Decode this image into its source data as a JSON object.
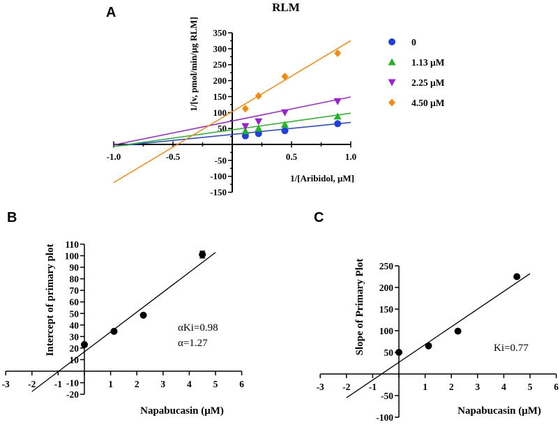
{
  "chart_data": [
    {
      "panel": "A",
      "type": "line",
      "title": "RLM",
      "xlabel": "1/[Aribidol, μM]",
      "ylabel": "1/[v, pmol/min/μg RLM]",
      "xlim": [
        -1.0,
        1.0
      ],
      "ylim": [
        -150,
        350
      ],
      "xticks": [
        -1.0,
        -0.5,
        0.5,
        1.0
      ],
      "xtick_labels": [
        "-1.0",
        "-0.5",
        "0.5",
        "1.0"
      ],
      "yticks": [
        -150,
        -100,
        -50,
        50,
        100,
        150,
        200,
        250,
        300,
        350
      ],
      "line_x_range": [
        -1.0,
        1.0
      ],
      "series": [
        {
          "name": "0",
          "color": "#1f3fe0",
          "marker": "circle",
          "x": [
            0.111,
            0.222,
            0.444,
            0.889
          ],
          "y": [
            27,
            34,
            43,
            65
          ],
          "fit": {
            "slope": 37.5,
            "intercept": 31.4
          }
        },
        {
          "name": "1.13 μM",
          "color": "#22b522",
          "marker": "triangle-up",
          "x": [
            0.111,
            0.222,
            0.444,
            0.889
          ],
          "y": [
            42,
            50,
            62,
            88
          ],
          "fit": {
            "slope": 52.1,
            "intercept": 45.7
          }
        },
        {
          "name": "2.25 μM",
          "color": "#9b1fd6",
          "marker": "triangle-down",
          "x": [
            0.111,
            0.222,
            0.444,
            0.889
          ],
          "y": [
            57,
            72,
            100,
            135
          ],
          "fit": {
            "slope": 75.3,
            "intercept": 73.6
          }
        },
        {
          "name": "4.50 μM",
          "color": "#f58a12",
          "marker": "diamond",
          "x": [
            0.111,
            0.222,
            0.444,
            0.889
          ],
          "y": [
            112,
            152,
            213,
            286
          ],
          "fit": {
            "slope": 222.5,
            "intercept": 102.8
          }
        }
      ]
    },
    {
      "panel": "B",
      "type": "scatter",
      "xlabel": "Napabucasin (μM)",
      "ylabel": "Intercept of primary plot",
      "xlim": [
        -3,
        6
      ],
      "ylim": [
        -20,
        110
      ],
      "xticks": [
        -3,
        -2,
        -1,
        1,
        2,
        3,
        4,
        5,
        6
      ],
      "yticks": [
        -20,
        -10,
        10,
        20,
        30,
        40,
        50,
        60,
        70,
        80,
        90,
        100,
        110
      ],
      "points": {
        "x": [
          0,
          1.13,
          2.25,
          4.5
        ],
        "y": [
          23,
          34.5,
          48.5,
          101
        ]
      },
      "error_bars": [
        0,
        0,
        0,
        3
      ],
      "fit": {
        "slope": 17.2,
        "intercept": 16.8,
        "x_range": [
          -2.0,
          5.0
        ]
      },
      "annotations": [
        "αKi=0.98",
        "α=1.27"
      ]
    },
    {
      "panel": "C",
      "type": "scatter",
      "xlabel": "Napabucasin (μM)",
      "ylabel": "Slope of Primary Plot",
      "xlim": [
        -3,
        6
      ],
      "ylim": [
        -100,
        250
      ],
      "xticks": [
        -3,
        -2,
        -1,
        1,
        2,
        3,
        4,
        5,
        6
      ],
      "yticks": [
        -100,
        -50,
        50,
        100,
        150,
        200,
        250
      ],
      "points": {
        "x": [
          0,
          1.13,
          2.25,
          4.5
        ],
        "y": [
          50,
          65,
          99,
          225
        ]
      },
      "error_bars": [
        0,
        0,
        0,
        0
      ],
      "fit": {
        "slope": 41.0,
        "intercept": 27.0,
        "x_range": [
          -2.0,
          5.0
        ]
      },
      "annotations": [
        "Ki=0.77"
      ]
    }
  ],
  "panel_letters": [
    "A",
    "B",
    "C"
  ]
}
